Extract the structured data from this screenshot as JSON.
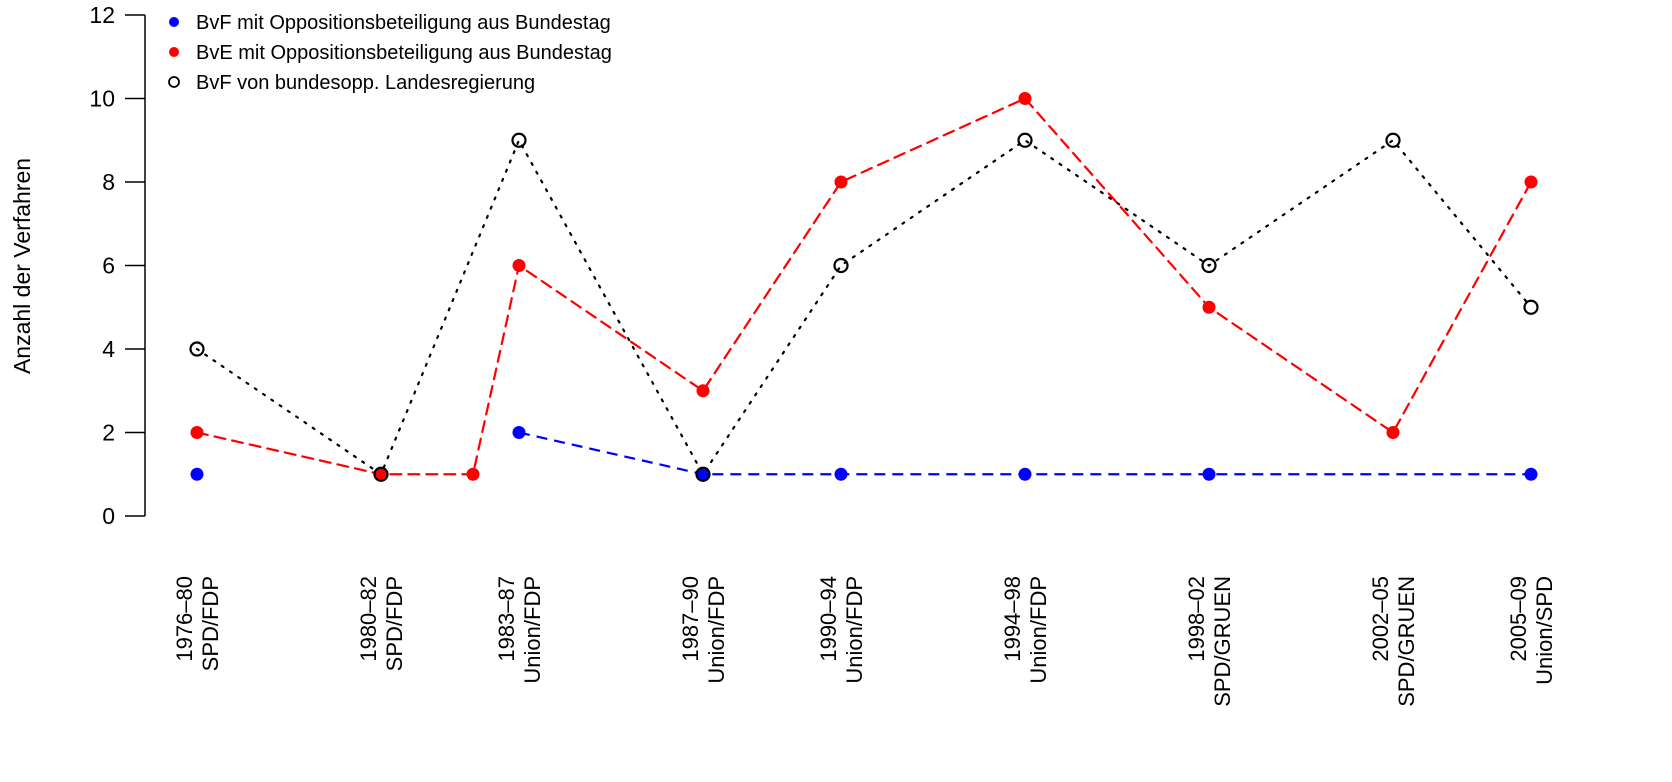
{
  "chart_data": {
    "type": "line",
    "title": "",
    "xlabel": "",
    "ylabel": "Anzahl der Verfahren",
    "ylim": [
      0,
      12
    ],
    "yticks": [
      "0",
      "2",
      "4",
      "6",
      "8",
      "10",
      "12"
    ],
    "grid": false,
    "legend_position": "top-left",
    "categories": [
      {
        "period": "1976–80",
        "coalition": "SPD/FDP"
      },
      {
        "period": "1980–82",
        "coalition": "SPD/FDP"
      },
      {
        "period": "1983–87",
        "coalition": "Union/FDP"
      },
      {
        "period": "1987–90",
        "coalition": "Union/FDP"
      },
      {
        "period": "1990–94",
        "coalition": "Union/FDP"
      },
      {
        "period": "1994–98",
        "coalition": "Union/FDP"
      },
      {
        "period": "1998–02",
        "coalition": "SPD/GRUEN"
      },
      {
        "period": "2002–05",
        "coalition": "SPD/GRUEN"
      },
      {
        "period": "2005–09",
        "coalition": "Union/SPD"
      }
    ],
    "x_years": [
      1976,
      1980,
      1983,
      1987,
      1990,
      1994,
      1998,
      2002,
      2005
    ],
    "series": [
      {
        "name": "BvF mit Oppositionsbeteiligung aus Bundestag",
        "color": "#0000ff",
        "marker": "filled-circle",
        "line_style": "dashed",
        "x": [
          1976,
          1983,
          1987,
          1990,
          1994,
          1998,
          2005
        ],
        "values": [
          1,
          2,
          1,
          1,
          1,
          1,
          1
        ]
      },
      {
        "name": "BvE mit Oppositionsbeteiligung aus Bundestag",
        "color": "#ff0000",
        "marker": "filled-circle",
        "line_style": "dashed",
        "x": [
          1976,
          1980,
          1982,
          1983,
          1987,
          1990,
          1994,
          1998,
          2002,
          2005
        ],
        "values": [
          2,
          1,
          1,
          6,
          3,
          8,
          10,
          5,
          2,
          8
        ]
      },
      {
        "name": "BvF von bundesopp. Landesregierung",
        "color": "#000000",
        "marker": "open-circle",
        "line_style": "dotted",
        "x": [
          1976,
          1980,
          1983,
          1987,
          1990,
          1994,
          1998,
          2002,
          2005
        ],
        "values": [
          4,
          1,
          9,
          1,
          6,
          9,
          6,
          9,
          5
        ]
      }
    ]
  }
}
